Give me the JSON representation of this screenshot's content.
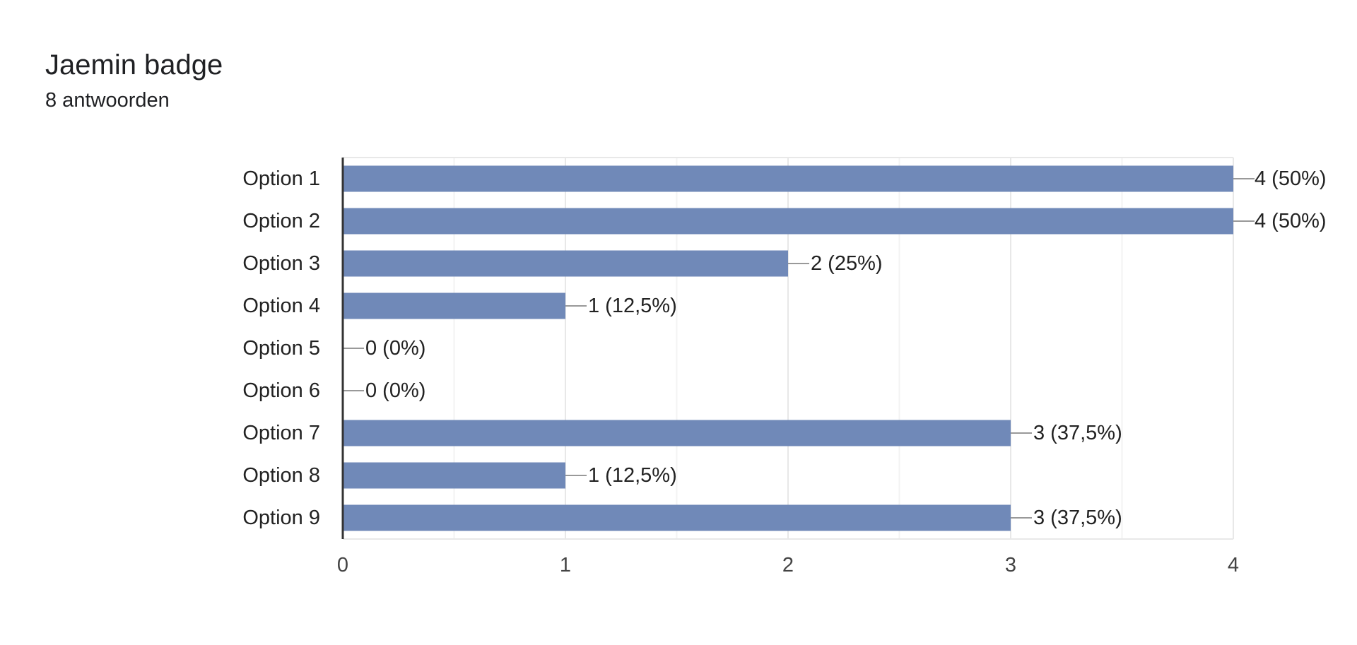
{
  "header": {
    "title": "Jaemin badge",
    "response_count": "8 antwoorden"
  },
  "colors": {
    "bar": "#7089b8",
    "axis": "#333333",
    "grid_major": "#e8e8e8",
    "grid_minor": "#f3f3f3",
    "leader": "#999999"
  },
  "chart_data": {
    "type": "bar",
    "orientation": "horizontal",
    "categories": [
      "Option 1",
      "Option 2",
      "Option 3",
      "Option 4",
      "Option 5",
      "Option 6",
      "Option 7",
      "Option 8",
      "Option 9"
    ],
    "values": [
      4,
      4,
      2,
      1,
      0,
      0,
      3,
      1,
      3
    ],
    "data_labels": [
      "4 (50%)",
      "4 (50%)",
      "2 (25%)",
      "1 (12,5%)",
      "0 (0%)",
      "0 (0%)",
      "3 (37,5%)",
      "1 (12,5%)",
      "3 (37,5%)"
    ],
    "xlim": [
      0,
      4
    ],
    "x_ticks": [
      "0",
      "1",
      "2",
      "3",
      "4"
    ],
    "grid": true,
    "legend": "none"
  }
}
